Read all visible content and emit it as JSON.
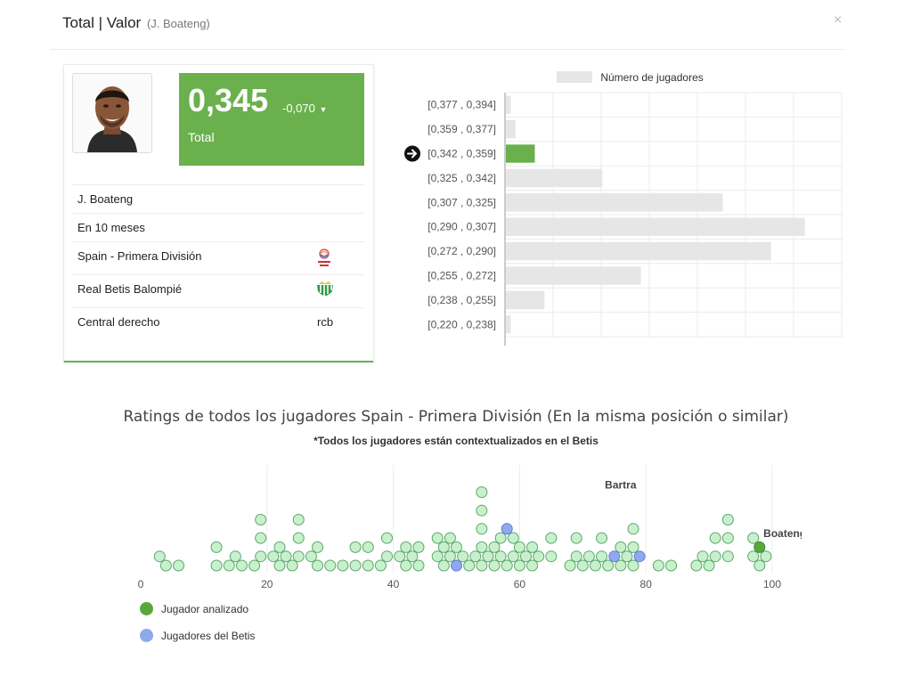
{
  "header": {
    "title": "Total | Valor",
    "subtitle": "(J. Boateng)",
    "close_icon": "×"
  },
  "card": {
    "score": "0,345",
    "delta": "-0,070",
    "score_label": "Total",
    "rows": [
      {
        "text": "J. Boateng"
      },
      {
        "text": "En 10 meses"
      },
      {
        "text": "Spain - Primera División",
        "icon": "laliga-logo-icon"
      },
      {
        "text": "Real Betis Balompié",
        "icon": "betis-crest-icon"
      },
      {
        "text": "Central derecho",
        "code": "rcb"
      }
    ]
  },
  "colors": {
    "accent": "#6ab04c",
    "bar_gray": "#e6e6e6",
    "dot_fill": "#c9f0cd",
    "dot_stroke": "#5aa86a",
    "analyzed": "#5aa83c",
    "betis": "#8fa9ee"
  },
  "chart_data": [
    {
      "type": "bar",
      "orientation": "horizontal",
      "legend": [
        "Número de jugadores"
      ],
      "legend_position": "top",
      "categories": [
        "[0,377 , 0,394]",
        "[0,359 , 0,377]",
        "[0,342 , 0,359]",
        "[0,325 , 0,342]",
        "[0,307 , 0,325]",
        "[0,290 , 0,307]",
        "[0,272 , 0,290]",
        "[0,255 , 0,272]",
        "[0,238 , 0,255]",
        "[0,220 , 0,238]"
      ],
      "values": [
        1,
        2,
        6,
        20,
        45,
        62,
        55,
        28,
        8,
        1
      ],
      "highlight_index": 2,
      "xlim": [
        0,
        70
      ],
      "grid": true
    },
    {
      "type": "scatter",
      "title": "Ratings de todos los jugadores Spain - Primera División (En la misma posición o similar)",
      "subtitle": "*Todos los jugadores están contextualizados en el Betis",
      "xlim": [
        0,
        100
      ],
      "xticks": [
        0,
        20,
        40,
        60,
        80,
        100
      ],
      "grid": true,
      "legend": [
        {
          "label": "Jugador analizado",
          "color": "#5aa83c"
        },
        {
          "label": "Jugadores del Betis",
          "color": "#8fa9ee"
        }
      ],
      "annotations": [
        {
          "text": "Bartra",
          "x": 76,
          "level": 8
        },
        {
          "text": "Boateng",
          "x": 102,
          "level": 2.7
        }
      ],
      "points": [
        {
          "x": 3,
          "level": 1
        },
        {
          "x": 4,
          "level": 0
        },
        {
          "x": 6,
          "level": 0
        },
        {
          "x": 12,
          "level": 0
        },
        {
          "x": 12,
          "level": 2
        },
        {
          "x": 14,
          "level": 0
        },
        {
          "x": 15,
          "level": 1
        },
        {
          "x": 16,
          "level": 0
        },
        {
          "x": 18,
          "level": 0
        },
        {
          "x": 19,
          "level": 1
        },
        {
          "x": 19,
          "level": 3
        },
        {
          "x": 19,
          "level": 5
        },
        {
          "x": 21,
          "level": 1
        },
        {
          "x": 22,
          "level": 0
        },
        {
          "x": 22,
          "level": 2
        },
        {
          "x": 23,
          "level": 1
        },
        {
          "x": 24,
          "level": 0
        },
        {
          "x": 25,
          "level": 1
        },
        {
          "x": 25,
          "level": 3
        },
        {
          "x": 25,
          "level": 5
        },
        {
          "x": 27,
          "level": 1
        },
        {
          "x": 28,
          "level": 0
        },
        {
          "x": 28,
          "level": 2
        },
        {
          "x": 30,
          "level": 0
        },
        {
          "x": 32,
          "level": 0
        },
        {
          "x": 34,
          "level": 0
        },
        {
          "x": 34,
          "level": 2
        },
        {
          "x": 36,
          "level": 0
        },
        {
          "x": 36,
          "level": 2
        },
        {
          "x": 38,
          "level": 0
        },
        {
          "x": 39,
          "level": 1
        },
        {
          "x": 39,
          "level": 3
        },
        {
          "x": 41,
          "level": 1
        },
        {
          "x": 42,
          "level": 0
        },
        {
          "x": 42,
          "level": 2
        },
        {
          "x": 43,
          "level": 1
        },
        {
          "x": 44,
          "level": 0
        },
        {
          "x": 44,
          "level": 2
        },
        {
          "x": 47,
          "level": 1
        },
        {
          "x": 47,
          "level": 3
        },
        {
          "x": 48,
          "level": 0
        },
        {
          "x": 48,
          "level": 2
        },
        {
          "x": 49,
          "level": 1
        },
        {
          "x": 49,
          "level": 3
        },
        {
          "x": 50,
          "level": 2
        },
        {
          "x": 51,
          "level": 1
        },
        {
          "x": 52,
          "level": 0
        },
        {
          "x": 53,
          "level": 1
        },
        {
          "x": 54,
          "level": 0
        },
        {
          "x": 54,
          "level": 2
        },
        {
          "x": 54,
          "level": 4
        },
        {
          "x": 54,
          "level": 6
        },
        {
          "x": 54,
          "level": 8
        },
        {
          "x": 55,
          "level": 1
        },
        {
          "x": 56,
          "level": 0
        },
        {
          "x": 56,
          "level": 2
        },
        {
          "x": 57,
          "level": 1
        },
        {
          "x": 57,
          "level": 3
        },
        {
          "x": 58,
          "level": 0
        },
        {
          "x": 59,
          "level": 1
        },
        {
          "x": 59,
          "level": 3
        },
        {
          "x": 60,
          "level": 0
        },
        {
          "x": 60,
          "level": 2
        },
        {
          "x": 61,
          "level": 1
        },
        {
          "x": 62,
          "level": 0
        },
        {
          "x": 62,
          "level": 2
        },
        {
          "x": 63,
          "level": 1
        },
        {
          "x": 65,
          "level": 1
        },
        {
          "x": 65,
          "level": 3
        },
        {
          "x": 68,
          "level": 0
        },
        {
          "x": 69,
          "level": 1
        },
        {
          "x": 69,
          "level": 3
        },
        {
          "x": 70,
          "level": 0
        },
        {
          "x": 71,
          "level": 1
        },
        {
          "x": 72,
          "level": 0
        },
        {
          "x": 73,
          "level": 1
        },
        {
          "x": 73,
          "level": 3
        },
        {
          "x": 74,
          "level": 0
        },
        {
          "x": 76,
          "level": 0
        },
        {
          "x": 76,
          "level": 2
        },
        {
          "x": 77,
          "level": 1
        },
        {
          "x": 78,
          "level": 0
        },
        {
          "x": 78,
          "level": 2
        },
        {
          "x": 78,
          "level": 4
        },
        {
          "x": 82,
          "level": 0
        },
        {
          "x": 84,
          "level": 0
        },
        {
          "x": 88,
          "level": 0
        },
        {
          "x": 89,
          "level": 1
        },
        {
          "x": 90,
          "level": 0
        },
        {
          "x": 91,
          "level": 1
        },
        {
          "x": 91,
          "level": 3
        },
        {
          "x": 93,
          "level": 1
        },
        {
          "x": 93,
          "level": 3
        },
        {
          "x": 93,
          "level": 5
        },
        {
          "x": 97,
          "level": 1
        },
        {
          "x": 97,
          "level": 3
        },
        {
          "x": 98,
          "level": 0
        },
        {
          "x": 99,
          "level": 1
        },
        {
          "x": 50,
          "level": 0,
          "group": "betis"
        },
        {
          "x": 58,
          "level": 4,
          "group": "betis"
        },
        {
          "x": 75,
          "level": 1,
          "group": "betis"
        },
        {
          "x": 79,
          "level": 1,
          "group": "betis"
        },
        {
          "x": 98,
          "level": 2,
          "group": "analyzed"
        }
      ]
    }
  ]
}
